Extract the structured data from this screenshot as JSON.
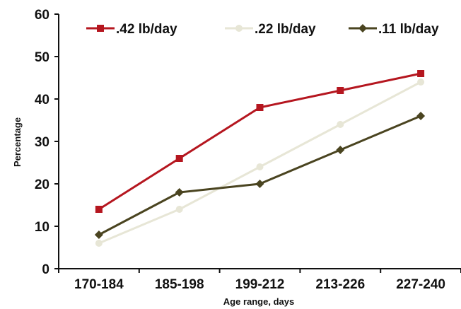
{
  "chart_data": {
    "type": "line",
    "title": "",
    "xlabel": "Age range, days",
    "ylabel": "Percentage",
    "categories": [
      "170-184",
      "185-198",
      "199-212",
      "213-226",
      "227-240"
    ],
    "yticks": [
      "0",
      "10",
      "20",
      "30",
      "40",
      "50",
      "60"
    ],
    "ylim": [
      0,
      60
    ],
    "grid": false,
    "legend_position": "top",
    "series": [
      {
        "name": ".42 lb/day",
        "color": "#b5161f",
        "marker": "square",
        "values": [
          14,
          26,
          38,
          42,
          46
        ]
      },
      {
        "name": ".22 lb/day",
        "color": "#e7e6d6",
        "marker": "circle",
        "values": [
          6,
          14,
          24,
          34,
          44
        ]
      },
      {
        "name": ".11 lb/day",
        "color": "#4a4420",
        "marker": "diamond",
        "values": [
          8,
          18,
          20,
          28,
          36
        ]
      }
    ]
  }
}
